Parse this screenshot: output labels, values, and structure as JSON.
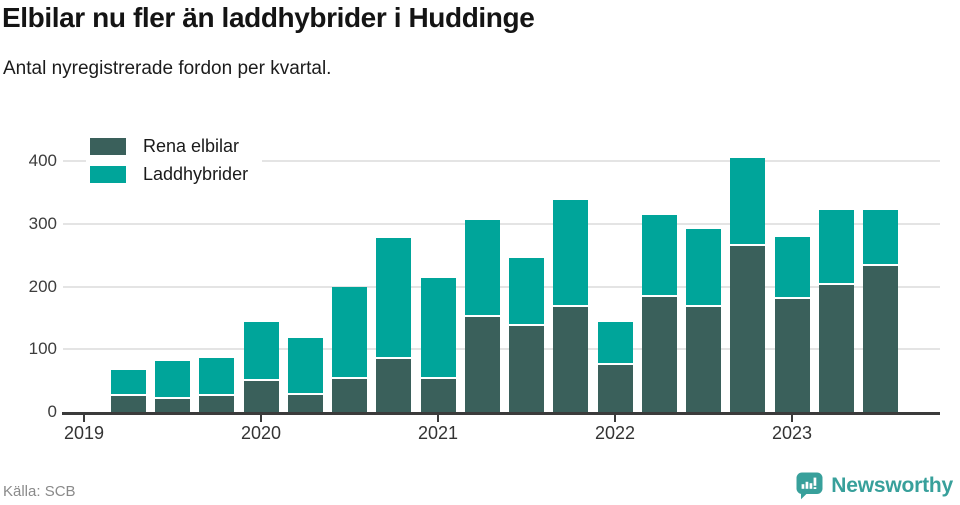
{
  "header": {
    "title": "Elbilar nu fler än laddhybrider i Huddinge",
    "subtitle": "Antal nyregistrerade fordon per kvartal."
  },
  "legend": {
    "items": [
      {
        "label": "Rena elbilar",
        "color": "#3a605b"
      },
      {
        "label": "Laddhybrider",
        "color": "#00a59a"
      }
    ]
  },
  "footer": {
    "source": "Källa: SCB",
    "brand": "Newsworthy",
    "brand_icon": "newsworthy-speech-bubble-bar-chart-icon",
    "brand_color": "#38a09b"
  },
  "colors": {
    "rena_elbilar": "#3a605b",
    "laddhybrider": "#00a59a",
    "gridline": "#e4e4e4",
    "axis": "#3b3b3b",
    "title_text": "#141414",
    "source_text": "#8a8a8a"
  },
  "chart_data": {
    "type": "bar",
    "stacked": true,
    "title": "Elbilar nu fler än laddhybrider i Huddinge",
    "subtitle": "Antal nyregistrerade fordon per kvartal.",
    "x": [
      "2019 Q1",
      "2019 Q2",
      "2019 Q3",
      "2019 Q4",
      "2020 Q1",
      "2020 Q2",
      "2020 Q3",
      "2020 Q4",
      "2021 Q1",
      "2021 Q2",
      "2021 Q3",
      "2021 Q4",
      "2022 Q1",
      "2022 Q2",
      "2022 Q3",
      "2022 Q4",
      "2023 Q1",
      "2023 Q2",
      "2023 Q3"
    ],
    "series": [
      {
        "name": "Rena elbilar",
        "color": "#3a605b",
        "values": [
          0,
          25,
          20,
          25,
          50,
          27,
          52,
          84,
          52,
          152,
          137,
          168,
          75,
          183,
          168,
          265,
          180,
          202,
          233
        ]
      },
      {
        "name": "Laddhybrider",
        "color": "#00a59a",
        "values": [
          0,
          42,
          61,
          62,
          94,
          91,
          147,
          193,
          162,
          155,
          108,
          171,
          68,
          132,
          124,
          140,
          100,
          120,
          89
        ]
      }
    ],
    "x_tick_labels": [
      "2019",
      "2020",
      "2021",
      "2022",
      "2023"
    ],
    "x_tick_positions": [
      0,
      4,
      8,
      12,
      16
    ],
    "y_ticks": [
      0,
      100,
      200,
      300,
      400
    ],
    "ylim": [
      0,
      450
    ],
    "grid": "horizontal",
    "legend_position": "top-left"
  }
}
